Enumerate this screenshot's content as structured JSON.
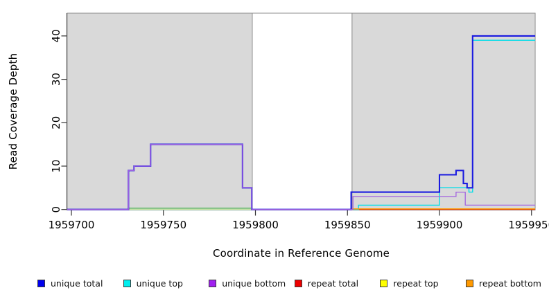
{
  "chart_data": {
    "type": "line",
    "subtype": "step-coverage",
    "title": "",
    "xlabel": "Coordinate in Reference Genome",
    "ylabel": "Read Coverage Depth",
    "x_axis": {
      "range": [
        1959697.7,
        1959952
      ],
      "tick_values": [
        1959700,
        1959750,
        1959800,
        1959850,
        1959900,
        1959950
      ],
      "tick_labels": [
        "1959700",
        "1959750",
        "1959800",
        "1959850",
        "1959900",
        "1959950"
      ]
    },
    "y_axis": {
      "range": [
        0,
        45
      ],
      "tick_values": [
        0,
        10,
        20,
        30,
        40
      ],
      "tick_labels": [
        "0",
        "10",
        "20",
        "30",
        "40"
      ]
    },
    "grid": "off",
    "background_regions": [
      {
        "name": "shaded-left",
        "x0": 1959697.7,
        "x1": 1959798.3,
        "color": "#d9d9d9",
        "border": "#8f8f8f"
      },
      {
        "name": "gap-white",
        "x0": 1959798.3,
        "x1": 1959852.5,
        "color": "#ffffff",
        "border": "#8f8f8f"
      },
      {
        "name": "shaded-right",
        "x0": 1959852.5,
        "x1": 1959952.0,
        "color": "#d9d9d9",
        "border": "#8f8f8f"
      }
    ],
    "series": [
      {
        "name": "repeat total",
        "color": "#dd0000",
        "swatch": "#ee0000",
        "width": 1,
        "steps": [
          [
            1959697.7,
            0
          ]
        ],
        "end": 1959952,
        "note": "hidden beneath other zero lines"
      },
      {
        "name": "unique top",
        "color": "#00dde8",
        "swatch": "#00eeee",
        "width": 1.4,
        "steps": [
          [
            1959697.7,
            0
          ],
          [
            1959856,
            1
          ],
          [
            1959900,
            5
          ],
          [
            1959916,
            4
          ],
          [
            1959918,
            39
          ]
        ],
        "end": 1959952
      },
      {
        "name": "baseline green",
        "color": "#5cb85c",
        "swatch": null,
        "width": 1.5,
        "in_legend": false,
        "steps": [
          [
            1959731,
            0.3
          ]
        ],
        "end": 1959798.3,
        "note": "unlabeled green zero line in left shaded region"
      },
      {
        "name": "repeat top",
        "color": "#ededa0",
        "swatch": "#ffff00",
        "width": 1.2,
        "steps": [
          [
            1959731,
            0
          ]
        ],
        "end": 1959798.3
      },
      {
        "name": "repeat bottom",
        "color": "#ff9d0a",
        "swatch": "#ff9900",
        "width": 1.6,
        "steps": [
          [
            1959852.5,
            0.15
          ]
        ],
        "end": 1959952
      },
      {
        "name": "unique total",
        "color": "#1a1ae0",
        "swatch": "#0000ee",
        "width": 2.1,
        "steps": [
          [
            1959697.7,
            0
          ],
          [
            1959731,
            9
          ],
          [
            1959734,
            10
          ],
          [
            1959743,
            15
          ],
          [
            1959793,
            5
          ],
          [
            1959798,
            0
          ],
          [
            1959852,
            4
          ],
          [
            1959900,
            8
          ],
          [
            1959909,
            9
          ],
          [
            1959913,
            6
          ],
          [
            1959915,
            5
          ],
          [
            1959918,
            40
          ]
        ],
        "end": 1959952
      },
      {
        "name": "unique bottom",
        "color": "#a263e0",
        "swatch": "#a020f0",
        "width": 1.3,
        "steps": [
          [
            1959697.7,
            0
          ],
          [
            1959731,
            9
          ],
          [
            1959734,
            10
          ],
          [
            1959743,
            15
          ],
          [
            1959793,
            5
          ],
          [
            1959798,
            0
          ],
          [
            1959853,
            3
          ],
          [
            1959909,
            4
          ],
          [
            1959914,
            1
          ]
        ],
        "end": 1959952
      }
    ],
    "legend": {
      "position": "bottom",
      "items": [
        {
          "label": "unique total",
          "color": "#0000ee"
        },
        {
          "label": "unique top",
          "color": "#00eeee"
        },
        {
          "label": "unique bottom",
          "color": "#a020f0"
        },
        {
          "label": "repeat total",
          "color": "#ee0000"
        },
        {
          "label": "repeat top",
          "color": "#ffff00"
        },
        {
          "label": "repeat bottom",
          "color": "#ff9900"
        }
      ]
    }
  }
}
